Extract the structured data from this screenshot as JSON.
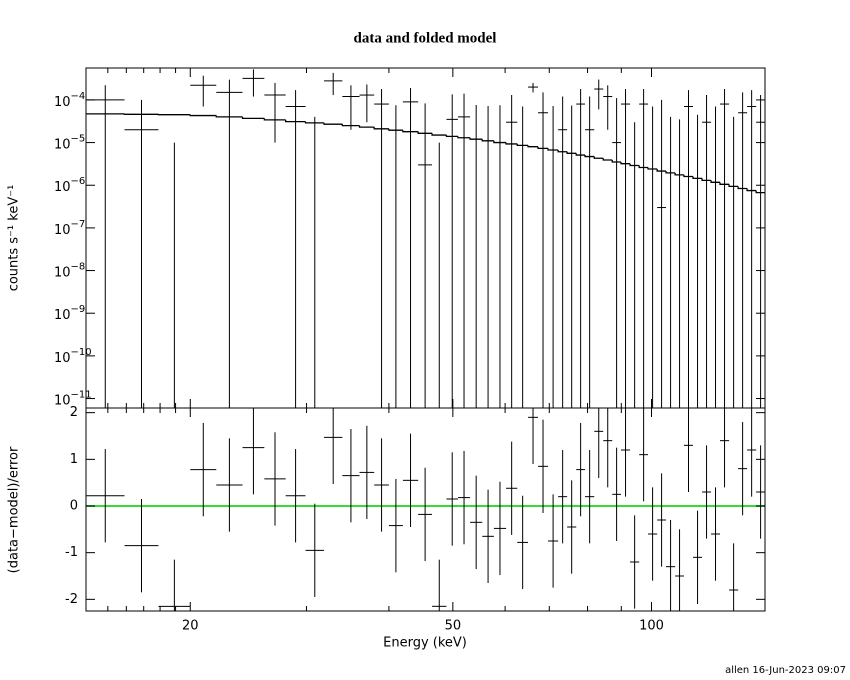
{
  "chart_data": [
    {
      "type": "errorbar",
      "title": "data and folded model",
      "y_label": "counts s⁻¹ keV⁻¹",
      "y_log": true,
      "color": "#000000",
      "ylim": [
        6e-12,
        0.00056
      ],
      "yticks": [
        {
          "value": 0.0001,
          "label": "10",
          "exp": "−4"
        },
        {
          "value": 1e-05,
          "label": "10",
          "exp": "−5"
        },
        {
          "value": 1e-06,
          "label": "10",
          "exp": "−6"
        },
        {
          "value": 1e-07,
          "label": "10",
          "exp": "−7"
        },
        {
          "value": 1e-08,
          "label": "10",
          "exp": "−8"
        },
        {
          "value": 1e-09,
          "label": "10",
          "exp": "−9"
        },
        {
          "value": 1e-10,
          "label": "10",
          "exp": "−10"
        },
        {
          "value": 1e-11,
          "label": "10",
          "exp": "−11"
        }
      ],
      "bins": [
        13.9,
        15.9,
        17.9,
        20.0,
        21.9,
        24.0,
        25.9,
        27.9,
        29.9,
        31.9,
        34.0,
        36.1,
        38.0,
        40.0,
        42.0,
        44.3,
        46.5,
        48.9,
        50.9,
        53.1,
        55.4,
        57.7,
        60.2,
        62.6,
        65.0,
        67.3,
        69.7,
        72.2,
        74.5,
        76.9,
        79.3,
        81.9,
        84.5,
        87.2,
        89.9,
        92.8,
        95.8,
        98.8,
        102.0,
        105.2,
        108.6,
        112.0,
        115.6,
        119.3,
        123.1,
        127.0,
        131.1,
        135.3,
        139.6,
        144.1,
        148.6
      ],
      "rate": [
        0.0001,
        2e-05,
        -2e-05,
        0.00022,
        0.00015,
        0.00032,
        0.00013,
        7e-05,
        -1e-05,
        0.00028,
        0.00012,
        0.00013,
        8e-05,
        -5e-06,
        9e-05,
        3e-06,
        -3e-05,
        3.5e-05,
        4e-05,
        -4e-06,
        -8e-06,
        -5e-06,
        3e-05,
        -1e-05,
        0.0002,
        5e-05,
        -8e-06,
        2e-05,
        -6e-06,
        8e-05,
        2e-05,
        0.00018,
        0.00012,
        1e-05,
        8e-05,
        -3e-05,
        8e-05,
        -1e-05,
        3e-07,
        -2e-05,
        -2.5e-05,
        7e-05,
        -1.5e-05,
        3e-05,
        -1e-05,
        8e-05,
        -2e-05,
        5e-05,
        7e-05,
        3e-05
      ],
      "rate_err": [
        0.00012,
        8e-05,
        3e-05,
        0.00015,
        0.00015,
        0.0002,
        0.00012,
        0.0001,
        5e-05,
        0.00015,
        0.0001,
        0.0001,
        0.0001,
        8e-05,
        0.0001,
        8e-05,
        4e-05,
        0.0001,
        0.0001,
        8e-05,
        8e-05,
        8e-05,
        0.0001,
        8e-05,
        5e-05,
        0.0001,
        8e-05,
        0.0001,
        8e-05,
        0.0001,
        0.0001,
        0.00012,
        0.0001,
        0.0001,
        0.0001,
        6e-05,
        0.0001,
        8e-05,
        0.0001,
        6e-05,
        6e-05,
        0.0001,
        6e-05,
        0.0001,
        8e-05,
        0.0001,
        6e-05,
        0.0001,
        0.0001,
        0.0001
      ],
      "model": [
        4.7e-05,
        4.6e-05,
        4.5e-05,
        4.3e-05,
        4e-05,
        3.7e-05,
        3.4e-05,
        3.1e-05,
        2.9e-05,
        2.7e-05,
        2.5e-05,
        2.3e-05,
        2.1e-05,
        1.95e-05,
        1.8e-05,
        1.65e-05,
        1.5e-05,
        1.4e-05,
        1.3e-05,
        1.2e-05,
        1.1e-05,
        1e-05,
        9.3e-06,
        8.6e-06,
        8e-06,
        7.3e-06,
        6.7e-06,
        6.1e-06,
        5.6e-06,
        5.1e-06,
        4.7e-06,
        4.3e-06,
        3.9e-06,
        3.5e-06,
        3.2e-06,
        2.9e-06,
        2.6e-06,
        2.4e-06,
        2.15e-06,
        1.95e-06,
        1.75e-06,
        1.6e-06,
        1.45e-06,
        1.3e-06,
        1.17e-06,
        1.05e-06,
        9.4e-07,
        8.4e-07,
        7.5e-07,
        6.7e-07
      ]
    },
    {
      "type": "residual",
      "x_label": "Energy (keV)",
      "y_label": "(data−model)/error",
      "x_log": true,
      "color": "#000000",
      "zero_line_color": "#33dd33",
      "xlim": [
        13.9,
        148.6
      ],
      "xticks": [
        20,
        50,
        100
      ],
      "xminor": [
        15,
        16,
        17,
        18,
        19,
        30,
        40,
        60,
        70,
        80,
        90
      ],
      "ylim": [
        -2.25,
        2.1
      ],
      "yticks": [
        -2,
        -1,
        0,
        1,
        2
      ],
      "residual": [
        0.22,
        -0.85,
        -2.15,
        0.78,
        0.45,
        1.25,
        0.58,
        0.22,
        -0.95,
        1.47,
        0.65,
        0.72,
        0.45,
        -0.42,
        0.55,
        -0.18,
        -2.15,
        0.15,
        0.18,
        -0.35,
        -0.65,
        -0.48,
        0.38,
        -0.78,
        1.9,
        0.85,
        -0.75,
        0.2,
        -0.45,
        0.78,
        0.2,
        1.6,
        1.4,
        0.25,
        1.2,
        -1.2,
        1.1,
        -0.6,
        -0.3,
        -1.3,
        -1.5,
        1.3,
        -1.1,
        0.3,
        -0.6,
        1.4,
        -1.8,
        0.8,
        1.2,
        0.3
      ],
      "residual_err": [
        1,
        1,
        1,
        1,
        1,
        1,
        1,
        1,
        1,
        1,
        1,
        1,
        1,
        1,
        1,
        1,
        1,
        1,
        1,
        1,
        1,
        1,
        1,
        1,
        1,
        1,
        1,
        1,
        1,
        1,
        1,
        1,
        1,
        1,
        1,
        1,
        1,
        1,
        1,
        1,
        1,
        1,
        1,
        1,
        1,
        1,
        1,
        1,
        1,
        1
      ]
    }
  ],
  "footer": "allen 16-Jun-2023 09:07"
}
